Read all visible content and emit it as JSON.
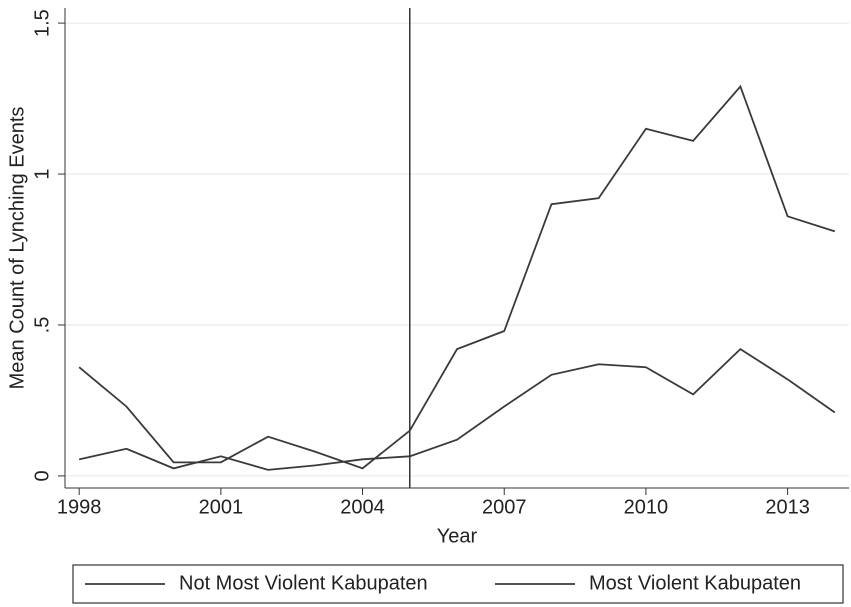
{
  "chart_data": {
    "type": "line",
    "x_label": "Year",
    "y_label": "Mean Count of Lynching Events",
    "x": [
      1998,
      1999,
      2000,
      2001,
      2002,
      2003,
      2004,
      2005,
      2006,
      2007,
      2008,
      2009,
      2010,
      2011,
      2012,
      2013,
      2014
    ],
    "series": [
      {
        "name": "Not Most Violent Kabupaten",
        "color": "#3a3a3a",
        "values": [
          0.055,
          0.09,
          0.025,
          0.065,
          0.02,
          0.035,
          0.055,
          0.065,
          0.12,
          0.23,
          0.335,
          0.37,
          0.36,
          0.27,
          0.42,
          0.32,
          0.21
        ]
      },
      {
        "name": "Most Violent Kabupaten",
        "color": "#3a3a3a",
        "values": [
          0.36,
          0.23,
          0.045,
          0.045,
          0.13,
          0.08,
          0.025,
          0.15,
          0.42,
          0.48,
          0.9,
          0.92,
          1.15,
          1.11,
          1.29,
          0.86,
          0.81
        ]
      }
    ],
    "vline": 2005,
    "xlim": [
      1997.7,
      2014.3
    ],
    "xticks": [
      1998,
      2001,
      2004,
      2007,
      2010,
      2013
    ],
    "ylim": [
      -0.04,
      1.55
    ],
    "yticks": [
      0,
      {
        "value": 0.5,
        "label": ".5"
      },
      1,
      1.5
    ],
    "grid": true
  }
}
